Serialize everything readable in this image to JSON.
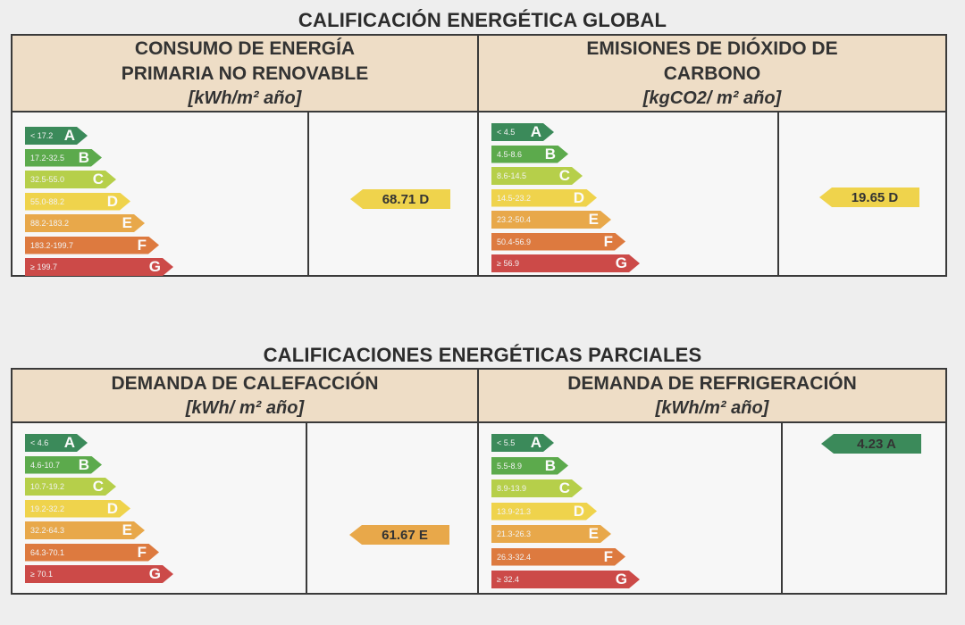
{
  "global": {
    "title": "CALIFICACIÓN ENERGÉTICA GLOBAL",
    "panels": [
      {
        "head_lines": [
          "CONSUMO DE ENERGÍA",
          "PRIMARIA NO RENOVABLE"
        ],
        "unit": "[kWh/m² año]",
        "bars": [
          {
            "range": "< 17.2",
            "letter": "A",
            "color": "#3b8a5a"
          },
          {
            "range": "17.2-32.5",
            "letter": "B",
            "color": "#5caa4c"
          },
          {
            "range": "32.5-55.0",
            "letter": "C",
            "color": "#b6cf4a"
          },
          {
            "range": "55.0-88.2",
            "letter": "D",
            "color": "#efd34c"
          },
          {
            "range": "88.2-183.2",
            "letter": "E",
            "color": "#e8a84a"
          },
          {
            "range": "183.2-199.7",
            "letter": "F",
            "color": "#dd7a3f"
          },
          {
            "range": "≥ 199.7",
            "letter": "G",
            "color": "#cc4a48"
          }
        ],
        "value": "68.71 D",
        "value_letter": "D",
        "value_color": "#efd34c"
      },
      {
        "head_lines": [
          "EMISIONES DE DIÓXIDO DE",
          "CARBONO"
        ],
        "unit": "[kgCO2/ m² año]",
        "bars": [
          {
            "range": "< 4.5",
            "letter": "A",
            "color": "#3b8a5a"
          },
          {
            "range": "4.5-8.6",
            "letter": "B",
            "color": "#5caa4c"
          },
          {
            "range": "8.6-14.5",
            "letter": "C",
            "color": "#b6cf4a"
          },
          {
            "range": "14.5-23.2",
            "letter": "D",
            "color": "#efd34c"
          },
          {
            "range": "23.2-50.4",
            "letter": "E",
            "color": "#e8a84a"
          },
          {
            "range": "50.4-56.9",
            "letter": "F",
            "color": "#dd7a3f"
          },
          {
            "range": "≥ 56.9",
            "letter": "G",
            "color": "#cc4a48"
          }
        ],
        "value": "19.65 D",
        "value_letter": "D",
        "value_color": "#efd34c"
      }
    ]
  },
  "partial": {
    "title": "CALIFICACIONES ENERGÉTICAS PARCIALES",
    "panels": [
      {
        "head_lines": [
          "DEMANDA DE CALEFACCIÓN"
        ],
        "unit": "[kWh/ m² año]",
        "bars": [
          {
            "range": "< 4.6",
            "letter": "A",
            "color": "#3b8a5a"
          },
          {
            "range": "4.6-10.7",
            "letter": "B",
            "color": "#5caa4c"
          },
          {
            "range": "10.7-19.2",
            "letter": "C",
            "color": "#b6cf4a"
          },
          {
            "range": "19.2-32.2",
            "letter": "D",
            "color": "#efd34c"
          },
          {
            "range": "32.2-64.3",
            "letter": "E",
            "color": "#e8a84a"
          },
          {
            "range": "64.3-70.1",
            "letter": "F",
            "color": "#dd7a3f"
          },
          {
            "range": "≥ 70.1",
            "letter": "G",
            "color": "#cc4a48"
          }
        ],
        "value": "61.67 E",
        "value_letter": "E",
        "value_color": "#e8a84a"
      },
      {
        "head_lines": [
          "DEMANDA DE REFRIGERACIÓN"
        ],
        "unit": "[kWh/m² año]",
        "bars": [
          {
            "range": "< 5.5",
            "letter": "A",
            "color": "#3b8a5a"
          },
          {
            "range": "5.5-8.9",
            "letter": "B",
            "color": "#5caa4c"
          },
          {
            "range": "8.9-13.9",
            "letter": "C",
            "color": "#b6cf4a"
          },
          {
            "range": "13.9-21.3",
            "letter": "D",
            "color": "#efd34c"
          },
          {
            "range": "21.3-26.3",
            "letter": "E",
            "color": "#e8a84a"
          },
          {
            "range": "26.3-32.4",
            "letter": "F",
            "color": "#dd7a3f"
          },
          {
            "range": "≥ 32.4",
            "letter": "G",
            "color": "#cc4a48"
          }
        ],
        "value": "4.23 A",
        "value_letter": "A",
        "value_color": "#3b8a5a"
      }
    ]
  }
}
